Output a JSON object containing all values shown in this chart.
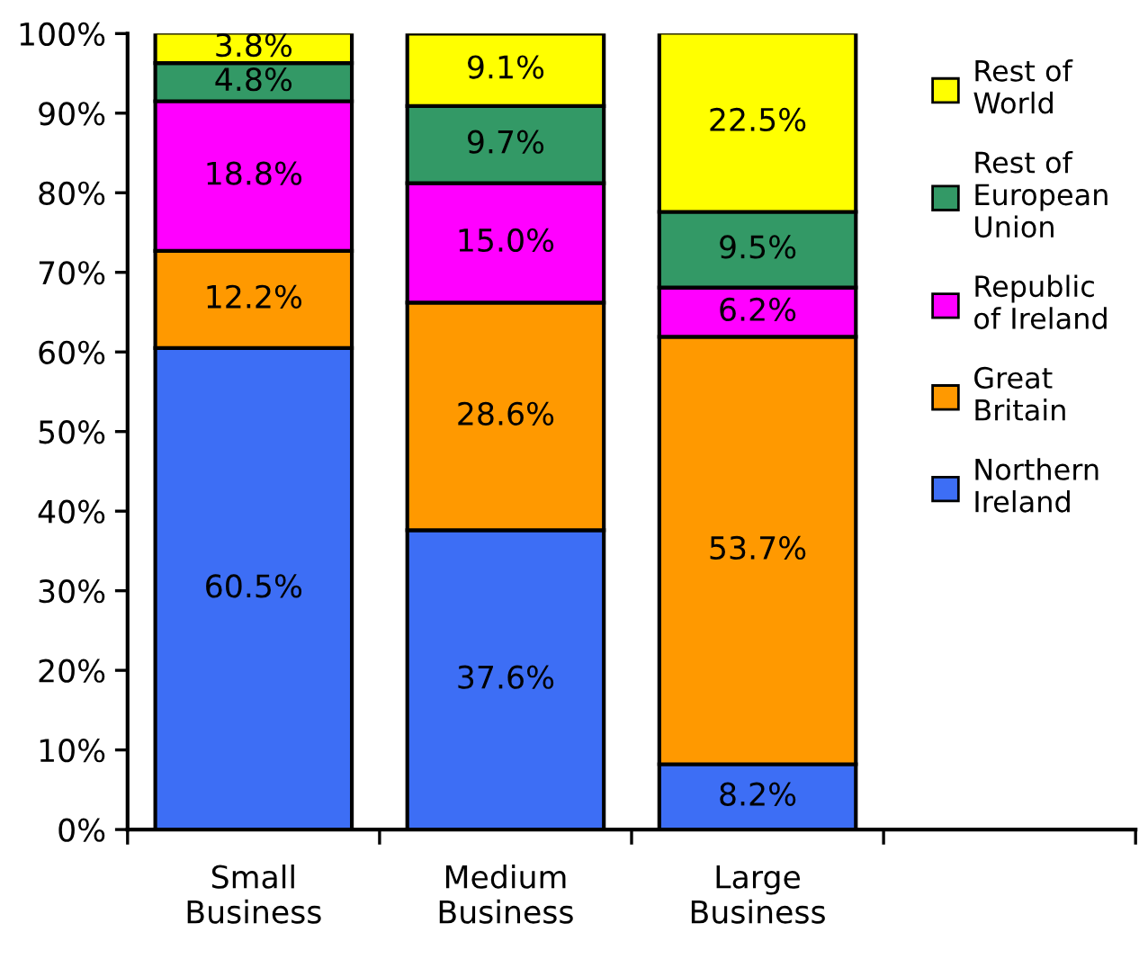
{
  "chart_data": {
    "type": "bar",
    "stacked": true,
    "categories": [
      "Small\nBusiness",
      "Medium\nBusiness",
      "Large\nBusiness"
    ],
    "series": [
      {
        "name": "Northern\nIreland",
        "color": "#3d6ef5",
        "values": [
          60.5,
          37.6,
          8.2
        ],
        "value_labels": [
          "60.5%",
          "37.6%",
          "8.2%"
        ]
      },
      {
        "name": "Great\nBritain",
        "color": "#ff9900",
        "values": [
          12.2,
          28.6,
          53.7
        ],
        "value_labels": [
          "12.2%",
          "28.6%",
          "53.7%"
        ]
      },
      {
        "name": "Republic\nof Ireland",
        "color": "#ff00ff",
        "values": [
          18.8,
          15.0,
          6.2
        ],
        "value_labels": [
          "18.8%",
          "15.0%",
          "6.2%"
        ]
      },
      {
        "name": "Rest of\nEuropean\nUnion",
        "color": "#339966",
        "values": [
          4.8,
          9.7,
          9.5
        ],
        "value_labels": [
          "4.8%",
          "9.7%",
          "9.5%"
        ]
      },
      {
        "name": "Rest of\nWorld",
        "color": "#ffff00",
        "values": [
          3.8,
          9.1,
          22.5
        ],
        "value_labels": [
          "3.8%",
          "9.1%",
          "22.5%"
        ]
      }
    ],
    "ylim": [
      0,
      100
    ],
    "yticks": [
      {
        "value": 0,
        "label": "0%"
      },
      {
        "value": 10,
        "label": "10%"
      },
      {
        "value": 20,
        "label": "20%"
      },
      {
        "value": 30,
        "label": "30%"
      },
      {
        "value": 40,
        "label": "40%"
      },
      {
        "value": 50,
        "label": "50%"
      },
      {
        "value": 60,
        "label": "60%"
      },
      {
        "value": 70,
        "label": "70%"
      },
      {
        "value": 80,
        "label": "80%"
      },
      {
        "value": 90,
        "label": "90%"
      },
      {
        "value": 100,
        "label": "100%"
      }
    ],
    "grid": false,
    "legend": "right"
  }
}
